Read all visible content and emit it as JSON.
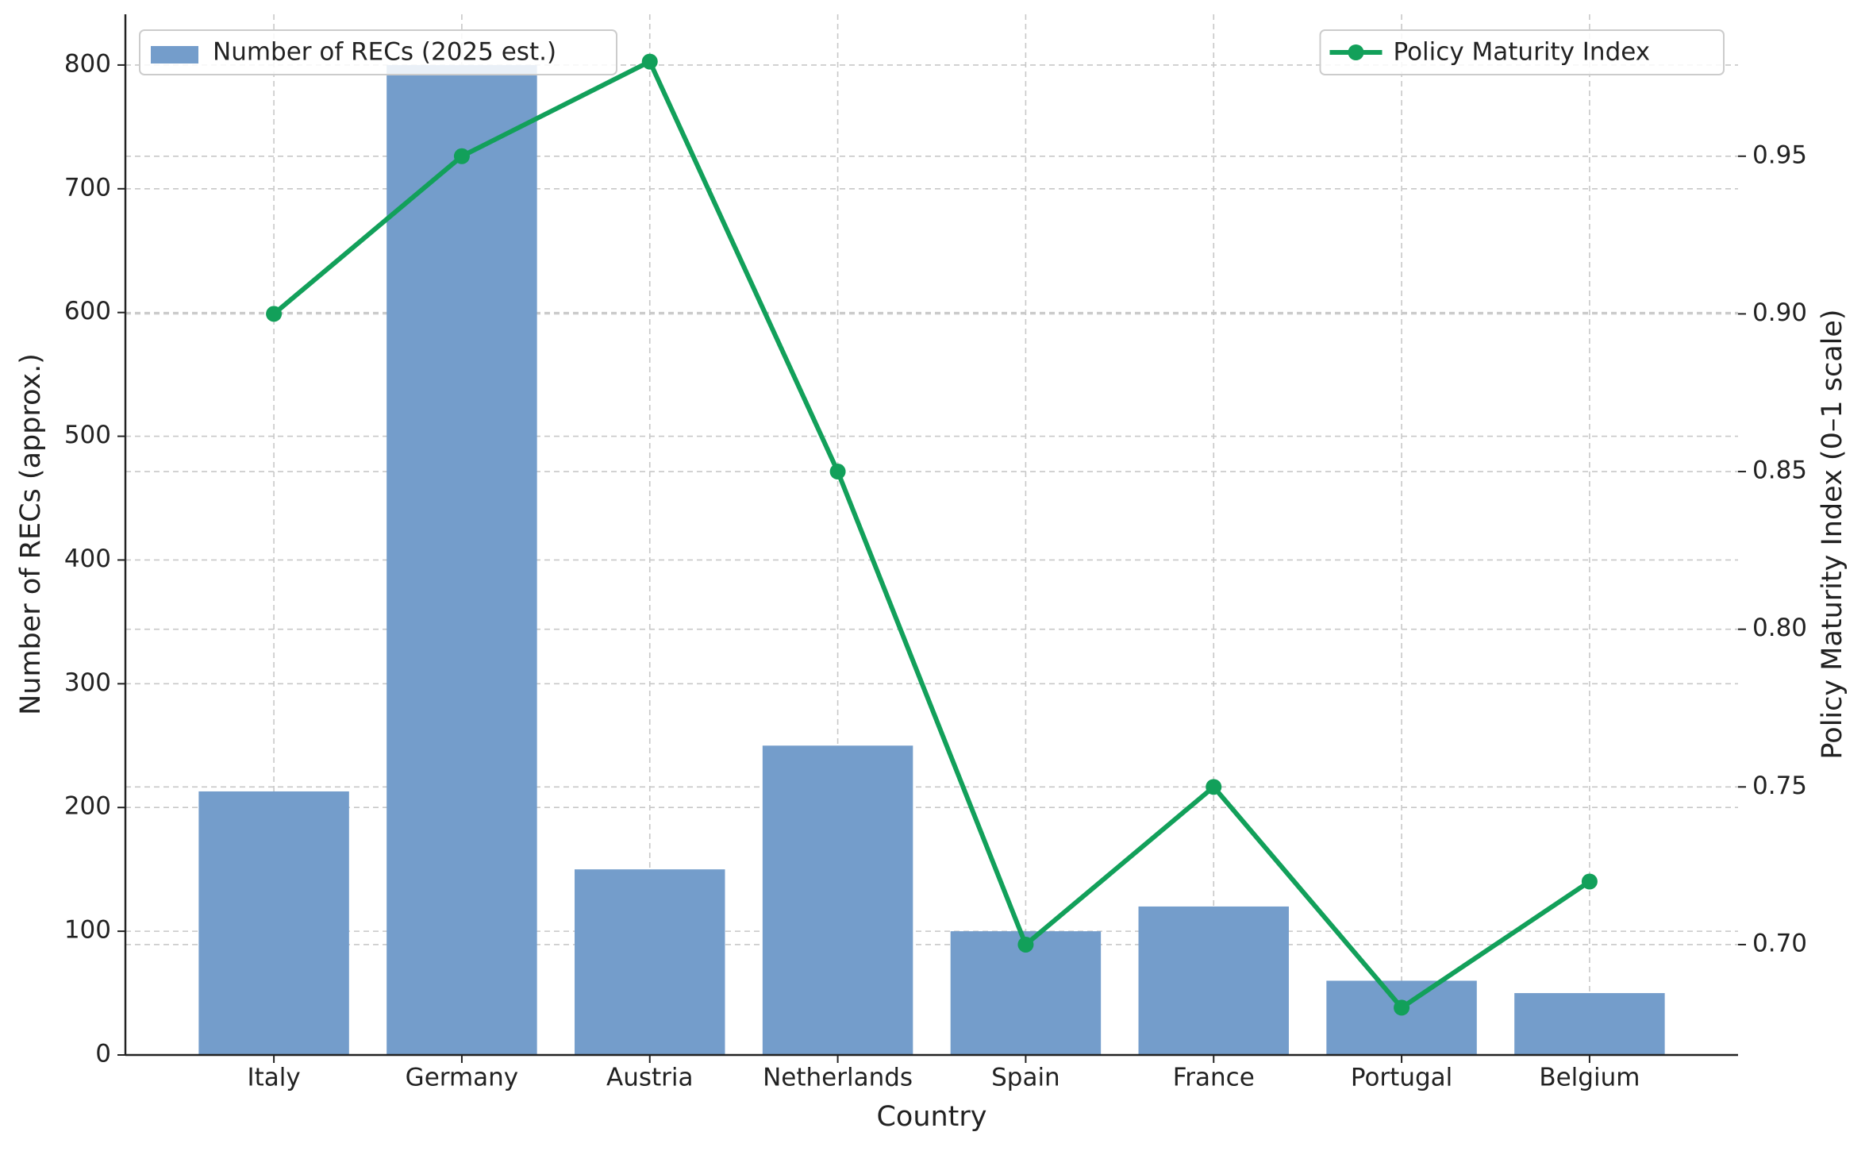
{
  "chart_data": {
    "type": "bar",
    "xlabel": "Country",
    "ylabel": "Number of RECs (approx.)",
    "y2label": "Policy Maturity Index (0–1 scale)",
    "categories": [
      "Italy",
      "Germany",
      "Austria",
      "Netherlands",
      "Spain",
      "France",
      "Portugal",
      "Belgium"
    ],
    "series": [
      {
        "name": "Number of RECs (2025 est.)",
        "type": "bar",
        "color": "#749dcb",
        "legend": "upper left",
        "values": [
          213,
          800,
          150,
          250,
          100,
          120,
          60,
          50
        ]
      },
      {
        "name": "Policy Maturity Index",
        "type": "line",
        "axis": "y2",
        "color": "#12a05a",
        "legend": "upper right",
        "values": [
          0.9,
          0.95,
          0.98,
          0.85,
          0.7,
          0.75,
          0.68,
          0.72
        ]
      }
    ],
    "ylim": [
      0,
      841
    ],
    "yticks": [
      0,
      100,
      200,
      300,
      400,
      500,
      600,
      700,
      800
    ],
    "y2lim": [
      0.665,
      0.995
    ],
    "y2ticks": [
      {
        "value": 0.7,
        "label": "0.70"
      },
      {
        "value": 0.75,
        "label": "0.75"
      },
      {
        "value": 0.8,
        "label": "0.80"
      },
      {
        "value": 0.85,
        "label": "0.85"
      },
      {
        "value": 0.9,
        "label": "0.90"
      },
      {
        "value": 0.95,
        "label": "0.95"
      }
    ],
    "grid": true
  }
}
